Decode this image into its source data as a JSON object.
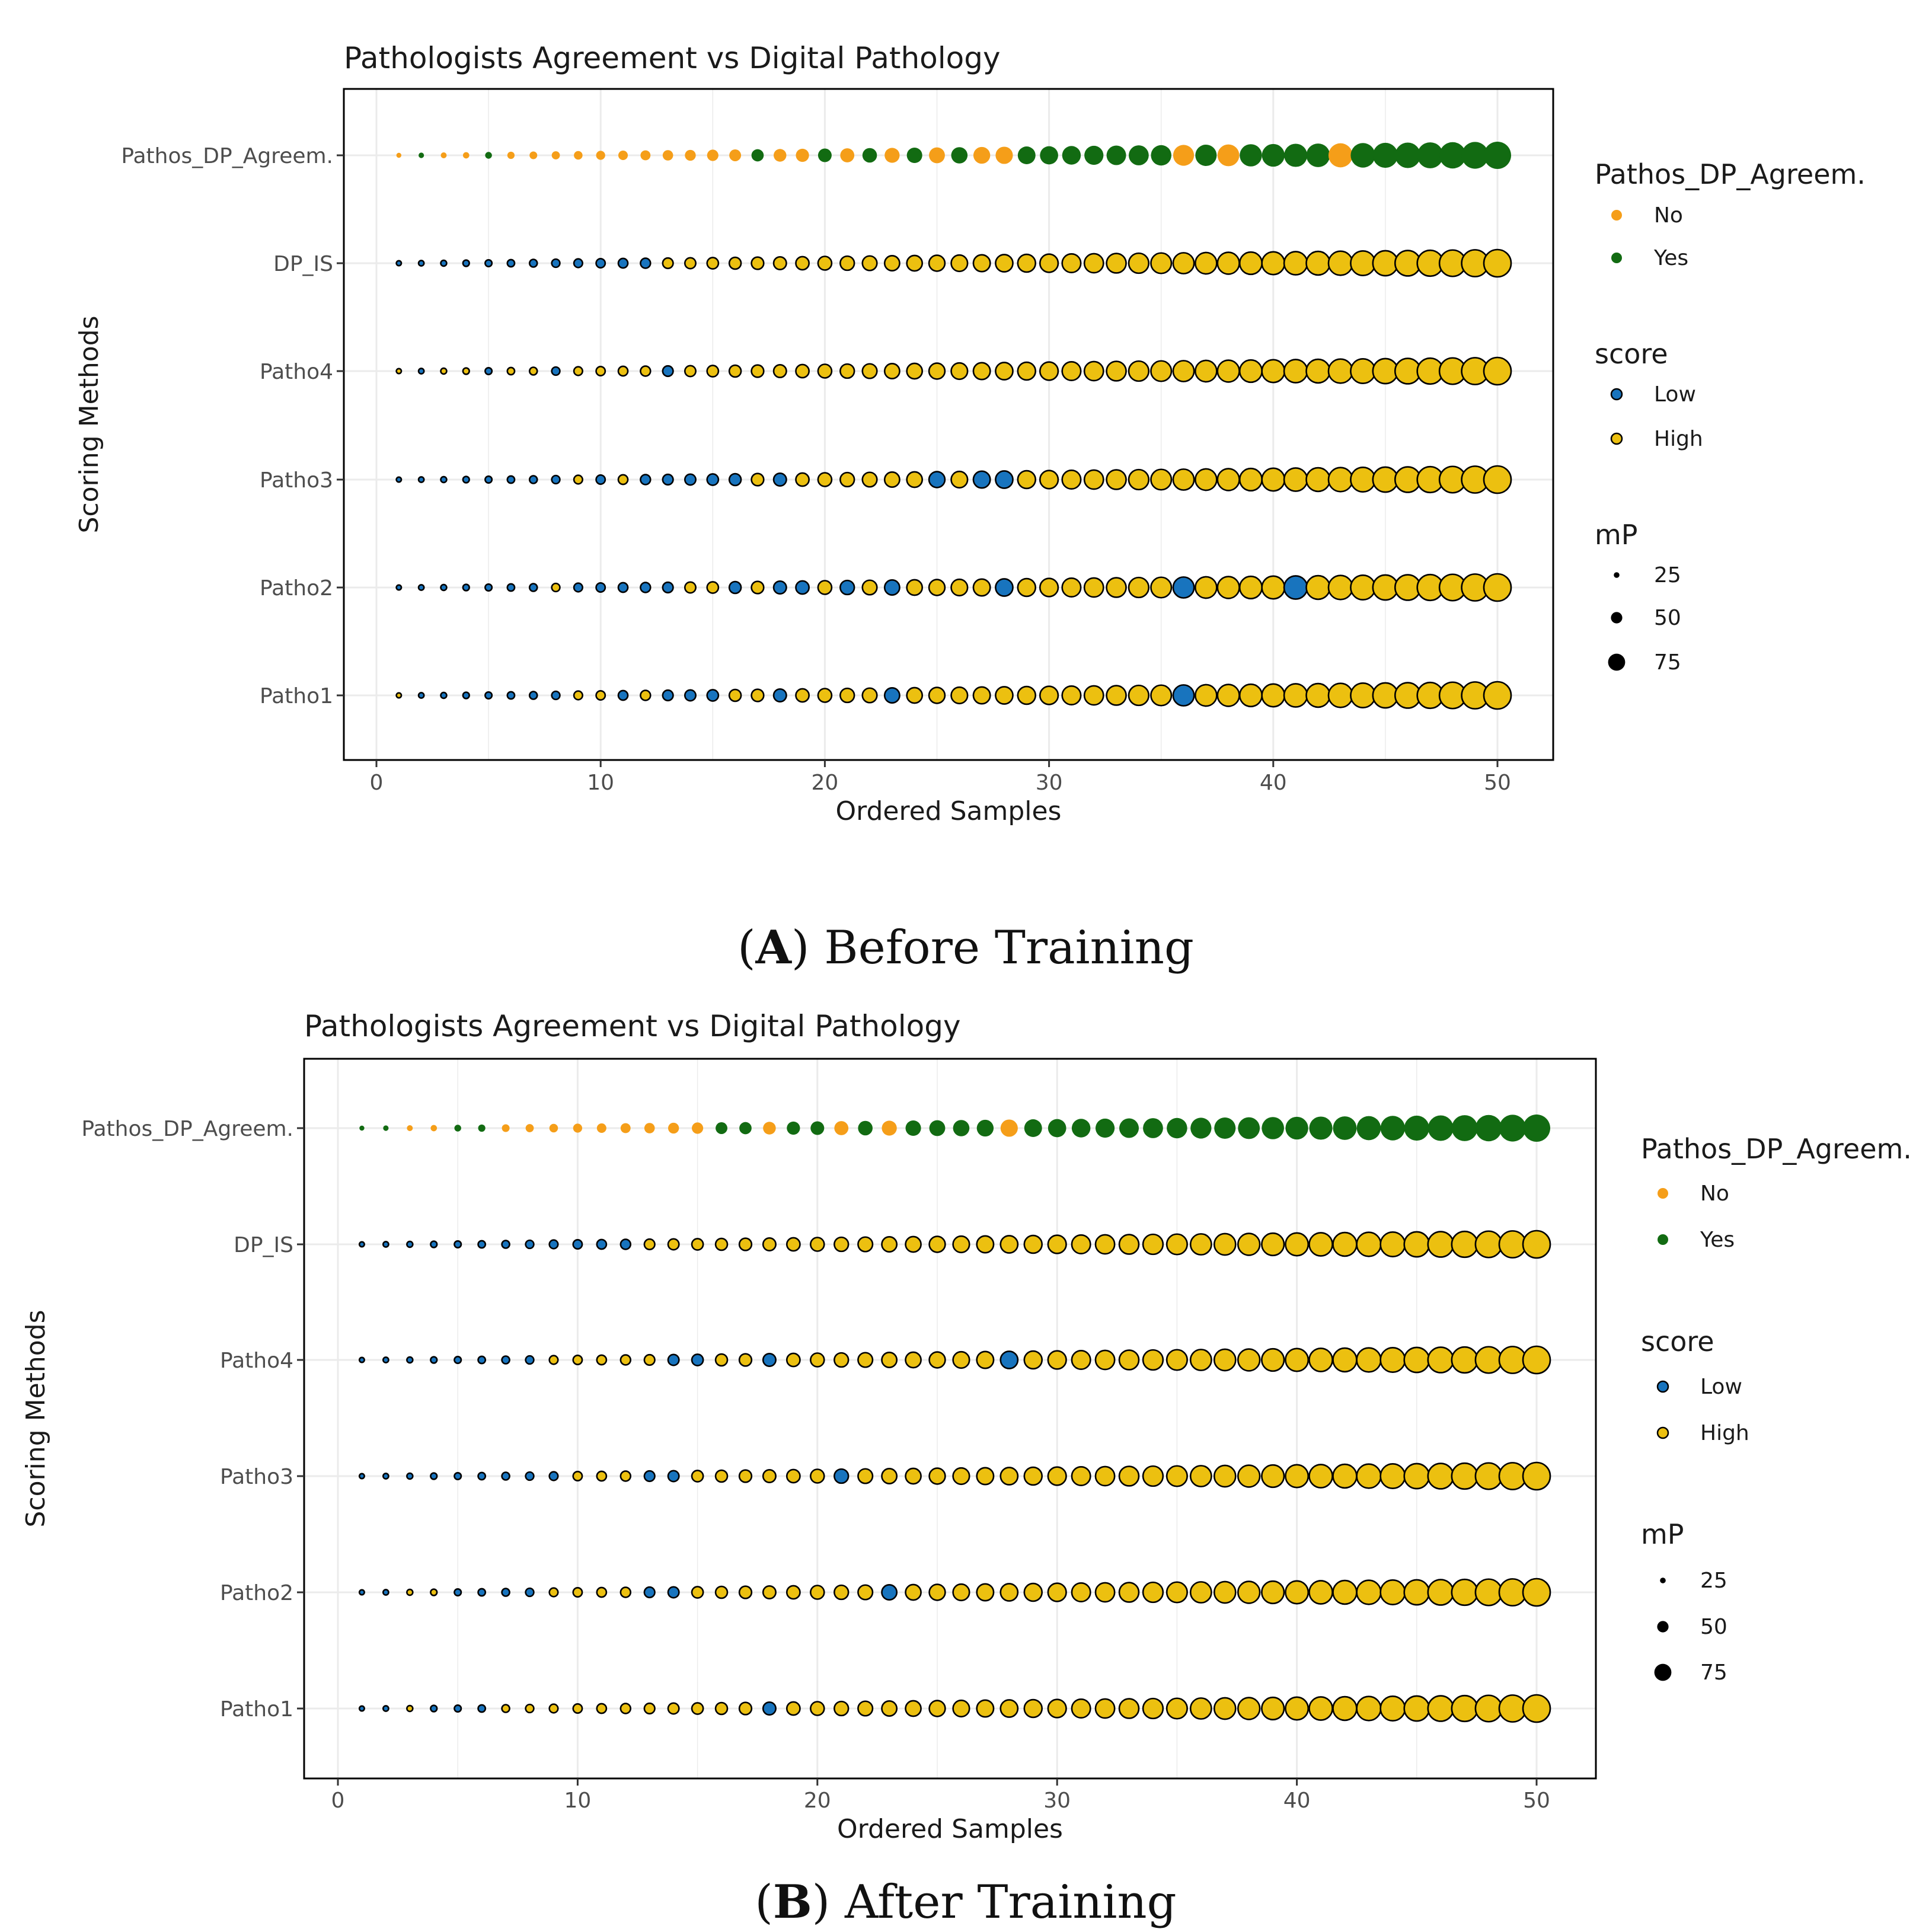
{
  "colors": {
    "no": "#f59e19",
    "yes": "#126b12",
    "low": "#1874be",
    "high": "#ecc010",
    "grid": "#ebebeb",
    "stroke": "#000000"
  },
  "chart_data": [
    {
      "type": "scatter",
      "panel": "A",
      "caption_letter": "A",
      "caption_text": "Before Training",
      "title": "Pathologists Agreement vs Digital Pathology",
      "xlabel": "Ordered Samples",
      "ylabel": "Scoring Methods",
      "xlim": [
        0,
        50
      ],
      "x_ticks": [
        "0",
        "10",
        "20",
        "30",
        "40",
        "50"
      ],
      "x_tick_values": [
        0,
        10,
        20,
        30,
        40,
        50
      ],
      "y_categories": [
        "Pathos_DP_Agreem.",
        "DP_IS",
        "Patho4",
        "Patho3",
        "Patho2",
        "Patho1"
      ],
      "x": [
        1,
        2,
        3,
        4,
        5,
        6,
        7,
        8,
        9,
        10,
        11,
        12,
        13,
        14,
        15,
        16,
        17,
        18,
        19,
        20,
        21,
        22,
        23,
        24,
        25,
        26,
        27,
        28,
        29,
        30,
        31,
        32,
        33,
        34,
        35,
        36,
        37,
        38,
        39,
        40,
        41,
        42,
        43,
        44,
        45,
        46,
        47,
        48,
        49,
        50
      ],
      "mP": [
        1,
        3,
        5,
        7,
        9,
        11,
        13,
        15,
        17,
        19,
        21,
        23,
        25,
        27,
        29,
        31,
        33,
        35,
        37,
        39,
        41,
        43,
        45,
        47,
        49,
        51,
        53,
        55,
        57,
        59,
        61,
        63,
        65,
        67,
        69,
        71,
        73,
        75,
        77,
        79,
        81,
        83,
        85,
        87,
        89,
        91,
        93,
        95,
        97,
        99
      ],
      "series": [
        {
          "name": "Pathos_DP_Agreem.",
          "kind": "agreement",
          "values": "NYNNYNNNNNNNNNNNYNNYNYNYNYNNYYYYYYYNYNYYYYNYYYYYYY"
        },
        {
          "name": "DP_IS",
          "kind": "score",
          "values": "LLLLLLLLLLLLHHHHHHHHHHHHHHHHHHHHHHHHHHHHHHHHHHHHHH"
        },
        {
          "name": "Patho4",
          "kind": "score",
          "values": "HLHHLHHLHHHHLHHHHHHHHHHHHHHHHHHHHHHHHHHHHHHHHHHHHH"
        },
        {
          "name": "Patho3",
          "kind": "score",
          "values": "LLLLLLLLHLHLLLLLHLHHHHHHLHLLHHHHHHHHHHHHHHHHHHHHHH"
        },
        {
          "name": "Patho2",
          "kind": "score",
          "values": "LLLLLLLHLLLLLHHLHLLHLHLHHHHLHHHHHHHLHHHHLHHHHHHHHH"
        },
        {
          "name": "Patho1",
          "kind": "score",
          "values": "HLLLLLLLHHLHLLLHHLHHHHLHHHHHHHHHHHHLHHHHHHHHHHHHHH"
        }
      ],
      "legend": {
        "agree_title": "Pathos_DP_Agreem.",
        "agree_items": [
          "No",
          "Yes"
        ],
        "score_title": "score",
        "score_items": [
          "Low",
          "High"
        ],
        "size_title": "mP",
        "size_items": [
          "25",
          "50",
          "75"
        ],
        "size_values": [
          25,
          50,
          75
        ],
        "placement": "right"
      }
    },
    {
      "type": "scatter",
      "panel": "B",
      "caption_letter": "B",
      "caption_text": "After Training",
      "title": "Pathologists Agreement vs Digital Pathology",
      "xlabel": "Ordered Samples",
      "ylabel": "Scoring Methods",
      "xlim": [
        0,
        50
      ],
      "x_ticks": [
        "0",
        "10",
        "20",
        "30",
        "40",
        "50"
      ],
      "x_tick_values": [
        0,
        10,
        20,
        30,
        40,
        50
      ],
      "y_categories": [
        "Pathos_DP_Agreem.",
        "DP_IS",
        "Patho4",
        "Patho3",
        "Patho2",
        "Patho1"
      ],
      "x": [
        1,
        2,
        3,
        4,
        5,
        6,
        7,
        8,
        9,
        10,
        11,
        12,
        13,
        14,
        15,
        16,
        17,
        18,
        19,
        20,
        21,
        22,
        23,
        24,
        25,
        26,
        27,
        28,
        29,
        30,
        31,
        32,
        33,
        34,
        35,
        36,
        37,
        38,
        39,
        40,
        41,
        42,
        43,
        44,
        45,
        46,
        47,
        48,
        49,
        50
      ],
      "mP": [
        1,
        3,
        5,
        7,
        9,
        11,
        13,
        15,
        17,
        19,
        21,
        23,
        25,
        27,
        29,
        31,
        33,
        35,
        37,
        39,
        41,
        43,
        45,
        47,
        49,
        51,
        53,
        55,
        57,
        59,
        61,
        63,
        65,
        67,
        69,
        71,
        73,
        75,
        77,
        79,
        81,
        83,
        85,
        87,
        89,
        91,
        93,
        95,
        97,
        99
      ],
      "series": [
        {
          "name": "Pathos_DP_Agreem.",
          "kind": "agreement",
          "values": "YYNNYYNNNNNNNNNYYNYYNYNYYYYNYYYYYYYYYYYYYYYYYYYYYY"
        },
        {
          "name": "DP_IS",
          "kind": "score",
          "values": "LLLLLLLLLLLLHHHHHHHHHHHHHHHHHHHHHHHHHHHHHHHHHHHHHH"
        },
        {
          "name": "Patho4",
          "kind": "score",
          "values": "LLLLLLLLHHHHHLLHHLHHHHHHHHHLHHHHHHHHHHHHHHHHHHHHHH"
        },
        {
          "name": "Patho3",
          "kind": "score",
          "values": "LLLLLLLLLHHHLLHHHHHHLHHHHHHHHHHHHHHHHHHHHHHHHHHHHH"
        },
        {
          "name": "Patho2",
          "kind": "score",
          "values": "LLHHLLLLHHHHLLHHHHHHHHLHHHHHHHHHHHHHHHHHHHHHHHHHHH"
        },
        {
          "name": "Patho1",
          "kind": "score",
          "values": "LLHLLLHHHHHHHHHHHLHHHHHHHHHHHHHHHHHHHHHHHHHHHHHHHH"
        }
      ],
      "legend": {
        "agree_title": "Pathos_DP_Agreem.",
        "agree_items": [
          "No",
          "Yes"
        ],
        "score_title": "score",
        "score_items": [
          "Low",
          "High"
        ],
        "size_title": "mP",
        "size_items": [
          "25",
          "50",
          "75"
        ],
        "size_values": [
          25,
          50,
          75
        ],
        "placement": "right"
      }
    }
  ]
}
